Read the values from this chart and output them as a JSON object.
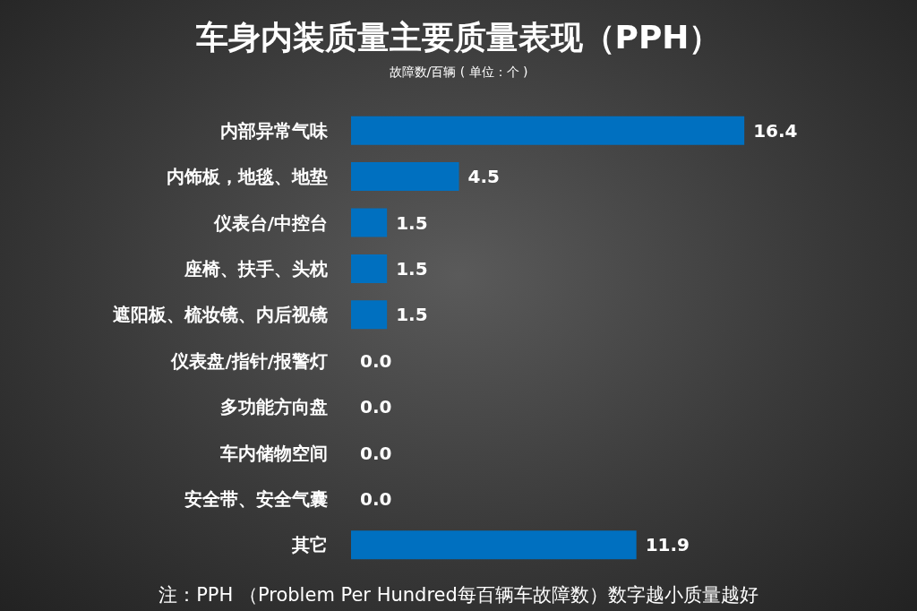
{
  "chart_data": {
    "type": "bar",
    "orientation": "horizontal",
    "title": "车身内装质量主要质量表现（PPH）",
    "subtitle": "故障数/百辆 ( 单位：个 )",
    "categories": [
      "内部异常气味",
      "内饰板，地毯、地垫",
      "仪表台/中控台",
      "座椅、扶手、头枕",
      "遮阳板、梳妆镜、内后视镜",
      "仪表盘/指针/报警灯",
      "多功能方向盘",
      "车内储物空间",
      "安全带、安全气囊",
      "其它"
    ],
    "values": [
      16.4,
      4.5,
      1.5,
      1.5,
      1.5,
      0.0,
      0.0,
      0.0,
      0.0,
      11.9
    ],
    "value_labels": [
      "16.4",
      "4.5",
      "1.5",
      "1.5",
      "1.5",
      "0.0",
      "0.0",
      "0.0",
      "0.0",
      "11.9"
    ],
    "color": "#0070c0",
    "annotations": [
      "注：PPH （Problem Per Hundred每百辆车故障数）数字越小质量越好"
    ]
  }
}
